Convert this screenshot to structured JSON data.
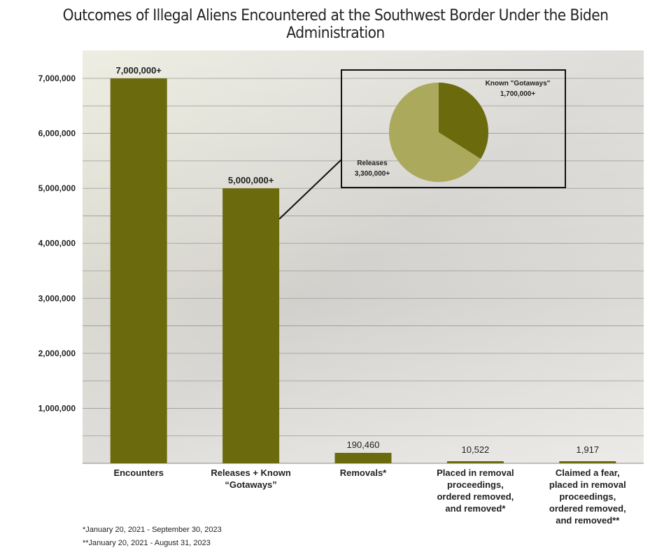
{
  "chart_data": {
    "type": "bar",
    "title": "Outcomes of Illegal Aliens Encountered at the Southwest Border Under the Biden Administration",
    "xlabel": "",
    "ylabel": "",
    "ylim": [
      0,
      7000000
    ],
    "yticks": [
      1000000,
      2000000,
      3000000,
      4000000,
      5000000,
      6000000,
      7000000
    ],
    "ytick_labels": [
      "1,000,000",
      "2,000,000",
      "3,000,000",
      "4,000,000",
      "5,000,000",
      "6,000,000",
      "7,000,000"
    ],
    "grid": true,
    "categories": [
      [
        "Encounters"
      ],
      [
        "Releases + Known",
        "“Gotaways”"
      ],
      [
        "Removals*"
      ],
      [
        "Placed in removal",
        "proceedings,",
        "ordered removed,",
        "and removed*"
      ],
      [
        "Claimed a fear,",
        "placed in removal",
        "proceedings,",
        "ordered removed,",
        "and removed**"
      ]
    ],
    "values": [
      7000000,
      5000000,
      190460,
      10522,
      1917
    ],
    "data_labels": [
      "7,000,000+",
      "5,000,000+",
      "190,460",
      "10,522",
      "1,917"
    ],
    "bar_color": "#6b6b0e",
    "inset": {
      "type": "pie",
      "slices": [
        {
          "name": "Known \"Gotaways\"",
          "label": "1,700,000+",
          "value": 1700000,
          "color": "#6b6b0e"
        },
        {
          "name": "Releases",
          "label": "3,300,000+",
          "value": 3300000,
          "color": "#aaa95c"
        }
      ]
    },
    "footnotes": [
      "*January 20, 2021 - September 30, 2023",
      "**January 20, 2021 - August 31, 2023"
    ]
  }
}
